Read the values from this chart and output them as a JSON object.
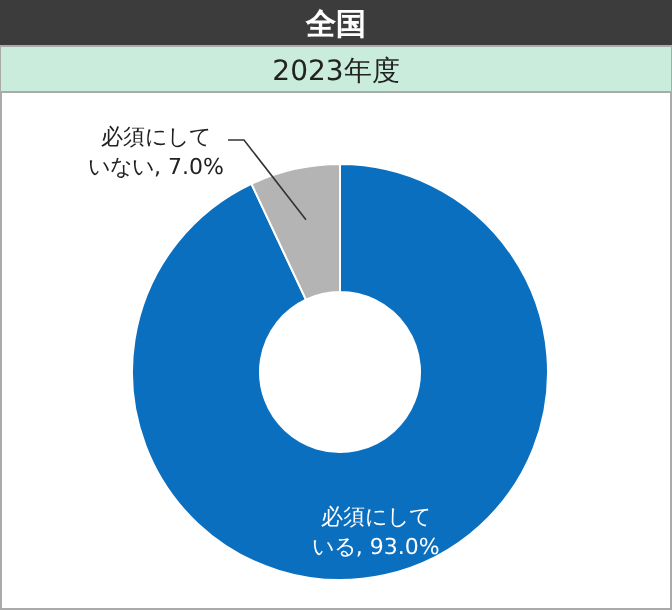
{
  "chart_data": {
    "type": "donut",
    "title": "全国",
    "subtitle": "2023年度",
    "categories": [
      "必須にしている",
      "必須にしていない"
    ],
    "values": [
      93.0,
      7.0
    ],
    "colors": [
      "#0b6fc0",
      "#b4b4b4"
    ],
    "value_labels": [
      "93.0%",
      "7.0%"
    ],
    "legend": false
  }
}
